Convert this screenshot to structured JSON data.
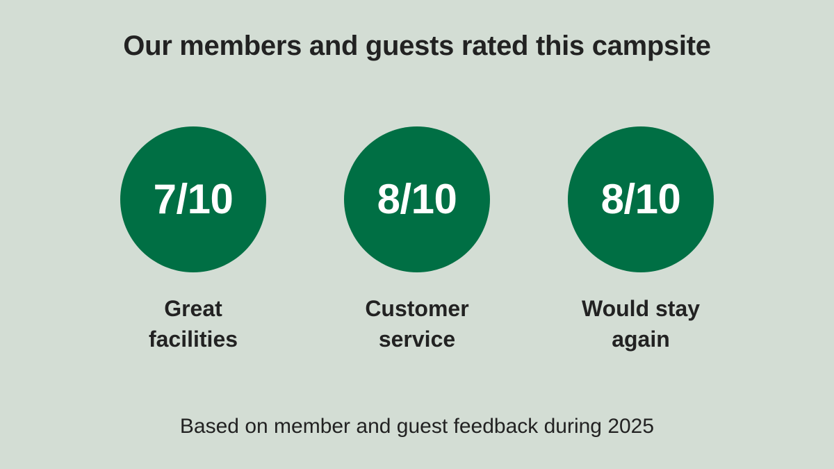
{
  "title": "Our members and guests rated this campsite",
  "ratings": [
    {
      "score": "7/10",
      "label_line1": "Great",
      "label_line2": "facilities"
    },
    {
      "score": "8/10",
      "label_line1": "Customer",
      "label_line2": "service"
    },
    {
      "score": "8/10",
      "label_line1": "Would stay",
      "label_line2": "again"
    }
  ],
  "footnote": "Based on member and guest feedback during 2025",
  "colors": {
    "background": "#d3ddd4",
    "circle_fill": "#006f44",
    "score_text": "#ffffff",
    "body_text": "#222222"
  }
}
